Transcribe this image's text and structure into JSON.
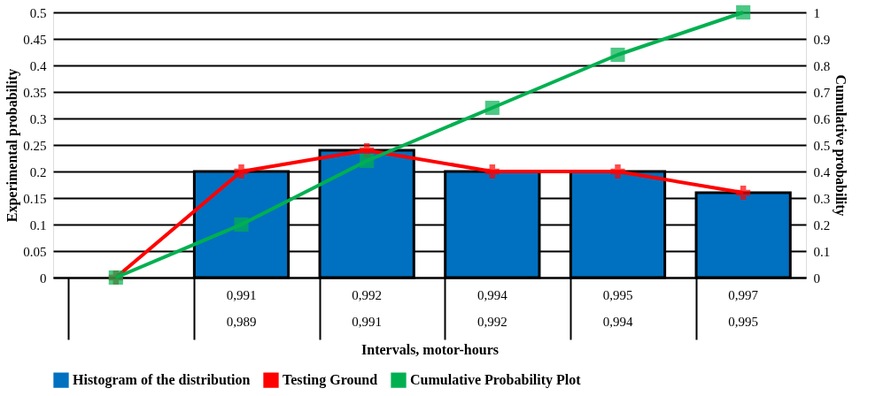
{
  "chart_data": {
    "type": "bar",
    "categories": [
      null,
      "0,991\n0,989",
      "0,992\n0,991",
      "0,994\n0,992",
      "0,995\n0,994",
      "0,997\n0,995"
    ],
    "xlabel": "Intervals, motor-hours",
    "ylabel": "Experimental probability",
    "y2label": "Cumulative probability",
    "series": [
      {
        "name": "Histogram of the distribution",
        "color": "#0070c0",
        "values": [
          null,
          0.2,
          0.24,
          0.2,
          0.2,
          0.16
        ]
      },
      {
        "name": "Testing Ground",
        "type": "line",
        "color": "#ff0000",
        "marker": "cross",
        "values": [
          0,
          0.2,
          0.24,
          0.2,
          0.2,
          0.16
        ]
      },
      {
        "name": "Cumulative Probability Plot",
        "type": "line",
        "color": "#00b050",
        "marker": "square",
        "axis": "y2",
        "values": [
          0,
          0.2,
          0.44,
          0.64,
          0.84,
          1
        ]
      }
    ],
    "ylim": [
      0,
      0.5
    ],
    "yticks": [
      0,
      0.05,
      0.1,
      0.15,
      0.2,
      0.25,
      0.3,
      0.35,
      0.4,
      0.45,
      0.5
    ],
    "y2lim": [
      0,
      1
    ],
    "y2ticks": [
      0,
      0.1,
      0.2,
      0.3,
      0.4,
      0.5,
      0.6,
      0.7,
      0.8,
      0.9,
      1
    ],
    "grid": "y",
    "legend": "bottom"
  }
}
